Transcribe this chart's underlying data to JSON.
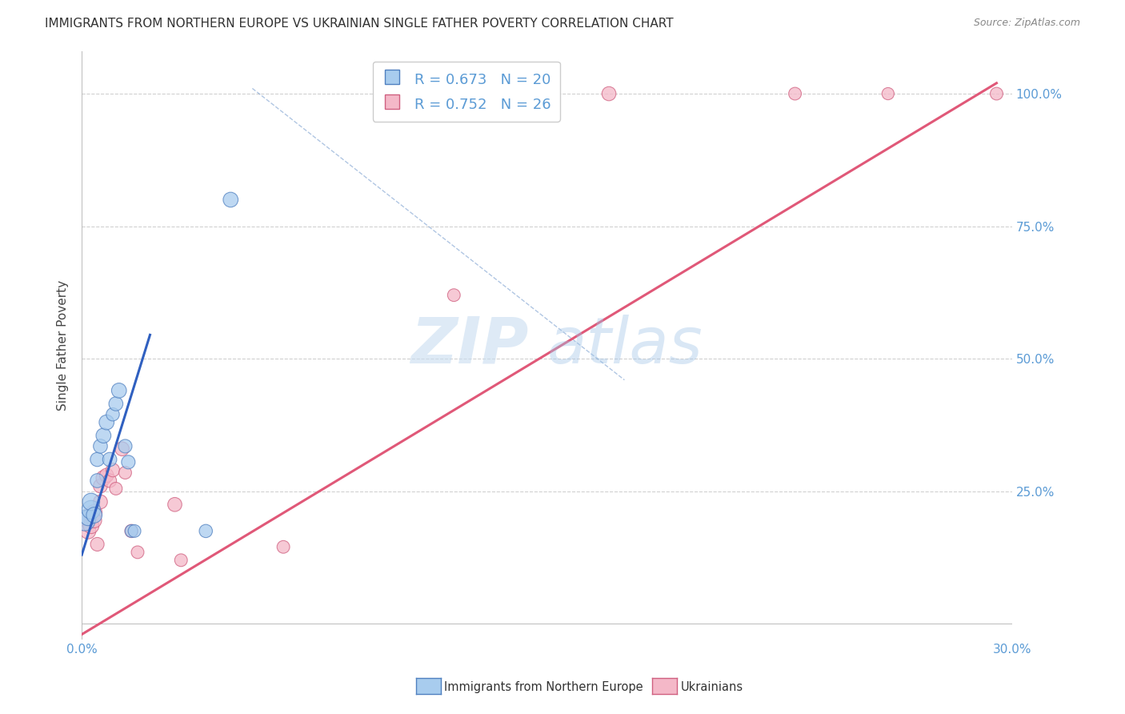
{
  "title": "IMMIGRANTS FROM NORTHERN EUROPE VS UKRAINIAN SINGLE FATHER POVERTY CORRELATION CHART",
  "source": "Source: ZipAtlas.com",
  "ylabel": "Single Father Poverty",
  "legend_label1": "Immigrants from Northern Europe",
  "legend_label2": "Ukrainians",
  "R1": 0.673,
  "N1": 20,
  "R2": 0.752,
  "N2": 26,
  "color_blue_fill": "#a8ccee",
  "color_pink_fill": "#f4b8c8",
  "color_blue_edge": "#5080c0",
  "color_pink_edge": "#d06080",
  "color_blue_line": "#3060c0",
  "color_pink_line": "#e05878",
  "color_text_blue": "#5b9bd5",
  "blue_scatter_x": [
    0.001,
    0.002,
    0.003,
    0.003,
    0.004,
    0.005,
    0.005,
    0.006,
    0.007,
    0.008,
    0.009,
    0.01,
    0.011,
    0.012,
    0.014,
    0.015,
    0.016,
    0.017,
    0.04,
    0.048
  ],
  "blue_scatter_y": [
    0.195,
    0.2,
    0.215,
    0.23,
    0.205,
    0.27,
    0.31,
    0.335,
    0.355,
    0.38,
    0.31,
    0.395,
    0.415,
    0.44,
    0.335,
    0.305,
    0.175,
    0.175,
    0.175,
    0.8
  ],
  "blue_scatter_size": [
    350,
    200,
    280,
    240,
    200,
    160,
    160,
    160,
    180,
    180,
    160,
    140,
    160,
    180,
    150,
    150,
    130,
    130,
    140,
    180
  ],
  "pink_scatter_x": [
    0.001,
    0.002,
    0.002,
    0.003,
    0.004,
    0.004,
    0.005,
    0.006,
    0.006,
    0.007,
    0.008,
    0.009,
    0.01,
    0.011,
    0.013,
    0.014,
    0.016,
    0.018,
    0.03,
    0.032,
    0.065,
    0.12,
    0.17,
    0.23,
    0.26,
    0.295
  ],
  "pink_scatter_y": [
    0.195,
    0.2,
    0.175,
    0.185,
    0.21,
    0.195,
    0.15,
    0.23,
    0.26,
    0.275,
    0.28,
    0.27,
    0.29,
    0.255,
    0.33,
    0.285,
    0.175,
    0.135,
    0.225,
    0.12,
    0.145,
    0.62,
    1.0,
    1.0,
    1.0,
    1.0
  ],
  "pink_scatter_size": [
    350,
    200,
    200,
    200,
    200,
    180,
    150,
    160,
    160,
    180,
    160,
    150,
    150,
    130,
    160,
    130,
    140,
    130,
    160,
    130,
    130,
    130,
    160,
    130,
    120,
    130
  ],
  "xlim": [
    0.0,
    0.3
  ],
  "ylim": [
    -0.03,
    1.08
  ],
  "ytick_positions": [
    0.0,
    0.25,
    0.5,
    0.75,
    1.0
  ],
  "ytick_labels": [
    "",
    "25.0%",
    "50.0%",
    "75.0%",
    "100.0%"
  ],
  "xtick_positions": [
    0.0,
    0.05,
    0.1,
    0.15,
    0.2,
    0.25,
    0.3
  ],
  "xtick_labels": [
    "0.0%",
    "",
    "",
    "",
    "",
    "",
    "30.0%"
  ],
  "blue_line_x0": 0.0,
  "blue_line_y0": 0.13,
  "blue_line_x1": 0.022,
  "blue_line_y1": 0.545,
  "pink_line_x0": 0.0,
  "pink_line_y0": -0.02,
  "pink_line_x1": 0.295,
  "pink_line_y1": 1.02,
  "dash_line_x0": 0.055,
  "dash_line_y0": 1.01,
  "dash_line_x1": 0.175,
  "dash_line_y1": 0.46,
  "watermark_zip": "ZIP",
  "watermark_atlas": "atlas",
  "background_color": "#ffffff"
}
